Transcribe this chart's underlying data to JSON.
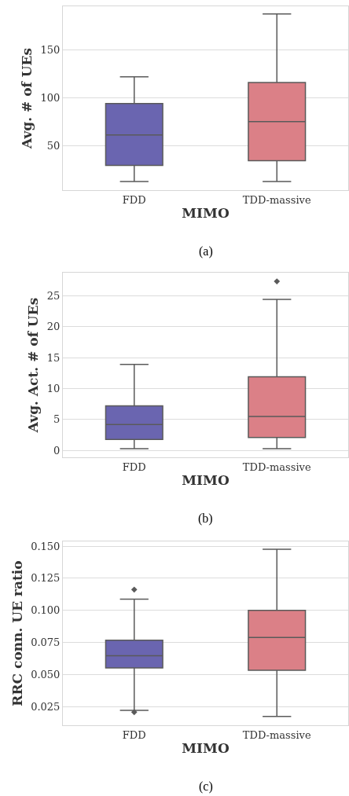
{
  "chart_data": [
    {
      "type": "box",
      "categories": [
        "FDD",
        "TDD-massive"
      ],
      "xlabel": "MIMO",
      "ylabel": "Avg. # of UEs",
      "ylim": [
        3,
        196
      ],
      "yticks": [
        50,
        100,
        150
      ],
      "grid": "y",
      "colors": [
        "#6a65b0",
        "#db8087"
      ],
      "boxes": [
        {
          "low": 12,
          "q1": 29,
          "median": 61,
          "q3": 94,
          "high": 122
        },
        {
          "low": 12,
          "q1": 34,
          "median": 75,
          "q3": 116,
          "high": 188
        }
      ],
      "annotations": [
        "(a)"
      ]
    },
    {
      "type": "box",
      "categories": [
        "FDD",
        "TDD-massive"
      ],
      "xlabel": "MIMO",
      "ylabel": "Avg. Act. # of UEs",
      "ylim": [
        -1.1,
        28.7
      ],
      "yticks": [
        0,
        5,
        10,
        15,
        20,
        25
      ],
      "grid": "y",
      "colors": [
        "#6a65b0",
        "#db8087"
      ],
      "boxes": [
        {
          "low": 0.3,
          "q1": 1.8,
          "median": 4.2,
          "q3": 7.2,
          "high": 13.9
        },
        {
          "low": 0.3,
          "q1": 2.1,
          "median": 5.5,
          "q3": 11.9,
          "high": 24.4,
          "outliers": [
            27.3
          ]
        }
      ],
      "annotations": [
        "(b)"
      ]
    },
    {
      "type": "box",
      "categories": [
        "FDD",
        "TDD-massive"
      ],
      "xlabel": "MIMO",
      "ylabel": "RRC conn. UE ratio",
      "ylim": [
        0.0103,
        0.1537
      ],
      "yticks": [
        {
          "value": 0.025,
          "label": "0.025"
        },
        {
          "value": 0.05,
          "label": "0.050"
        },
        {
          "value": 0.075,
          "label": "0.075"
        },
        {
          "value": 0.1,
          "label": "0.100"
        },
        {
          "value": 0.125,
          "label": "0.125"
        },
        {
          "value": 0.15,
          "label": "0.150"
        }
      ],
      "grid": "y",
      "colors": [
        "#6a65b0",
        "#db8087"
      ],
      "boxes": [
        {
          "low": 0.0219,
          "q1": 0.055,
          "median": 0.0646,
          "q3": 0.0766,
          "high": 0.1086,
          "outliers": [
            0.1161,
            0.0205
          ]
        },
        {
          "low": 0.0172,
          "q1": 0.0532,
          "median": 0.0788,
          "q3": 0.0999,
          "high": 0.1476
        }
      ],
      "annotations": [
        "(c)"
      ]
    }
  ]
}
